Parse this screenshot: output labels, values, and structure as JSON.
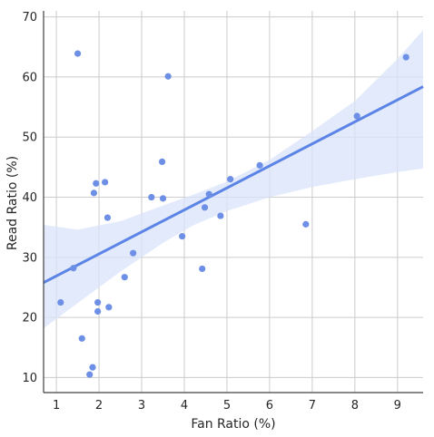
{
  "chart_data": {
    "type": "scatter",
    "title": "",
    "xlabel": "Fan Ratio (%)",
    "ylabel": "Read Ratio (%)",
    "xlim": [
      0.7,
      9.6
    ],
    "ylim": [
      7.5,
      71
    ],
    "x_ticks": [
      1,
      2,
      3,
      4,
      5,
      6,
      7,
      8,
      9
    ],
    "y_ticks": [
      10,
      20,
      30,
      40,
      50,
      60,
      70
    ],
    "grid": true,
    "colors": {
      "points": "#6d8fe6",
      "line": "#5b84e6",
      "band": "#d8e3fa",
      "grid": "#cccccc",
      "axis": "#404040"
    },
    "points": [
      {
        "x": 1.1,
        "y": 22.5
      },
      {
        "x": 1.4,
        "y": 28.2
      },
      {
        "x": 1.5,
        "y": 63.9
      },
      {
        "x": 1.6,
        "y": 16.5
      },
      {
        "x": 1.78,
        "y": 10.5
      },
      {
        "x": 1.85,
        "y": 11.7
      },
      {
        "x": 1.88,
        "y": 40.7
      },
      {
        "x": 1.93,
        "y": 42.3
      },
      {
        "x": 1.97,
        "y": 22.5
      },
      {
        "x": 1.97,
        "y": 21.0
      },
      {
        "x": 2.14,
        "y": 42.5
      },
      {
        "x": 2.2,
        "y": 36.6
      },
      {
        "x": 2.23,
        "y": 21.7
      },
      {
        "x": 2.6,
        "y": 26.7
      },
      {
        "x": 2.8,
        "y": 30.7
      },
      {
        "x": 3.23,
        "y": 40.0
      },
      {
        "x": 3.48,
        "y": 45.9
      },
      {
        "x": 3.5,
        "y": 39.8
      },
      {
        "x": 3.62,
        "y": 60.1
      },
      {
        "x": 3.95,
        "y": 33.5
      },
      {
        "x": 4.42,
        "y": 28.1
      },
      {
        "x": 4.48,
        "y": 38.3
      },
      {
        "x": 4.58,
        "y": 40.5
      },
      {
        "x": 4.85,
        "y": 36.9
      },
      {
        "x": 5.08,
        "y": 43.0
      },
      {
        "x": 5.77,
        "y": 45.3
      },
      {
        "x": 6.85,
        "y": 35.5
      },
      {
        "x": 8.05,
        "y": 53.5
      },
      {
        "x": 9.2,
        "y": 63.3
      }
    ],
    "regression": {
      "x": [
        0.7,
        9.6
      ],
      "y": [
        25.8,
        58.4
      ]
    },
    "confidence_band": {
      "x": [
        0.7,
        1.5,
        2.5,
        3.5,
        4.2,
        5.0,
        6.0,
        7.0,
        8.0,
        9.0,
        9.6
      ],
      "lower": [
        18.2,
        22.4,
        27.6,
        32.4,
        35.3,
        37.7,
        40.0,
        41.7,
        43.0,
        44.2,
        44.8
      ],
      "upper": [
        35.4,
        34.6,
        36.0,
        38.6,
        40.4,
        42.6,
        46.2,
        51.0,
        56.0,
        63.0,
        67.8
      ]
    }
  }
}
